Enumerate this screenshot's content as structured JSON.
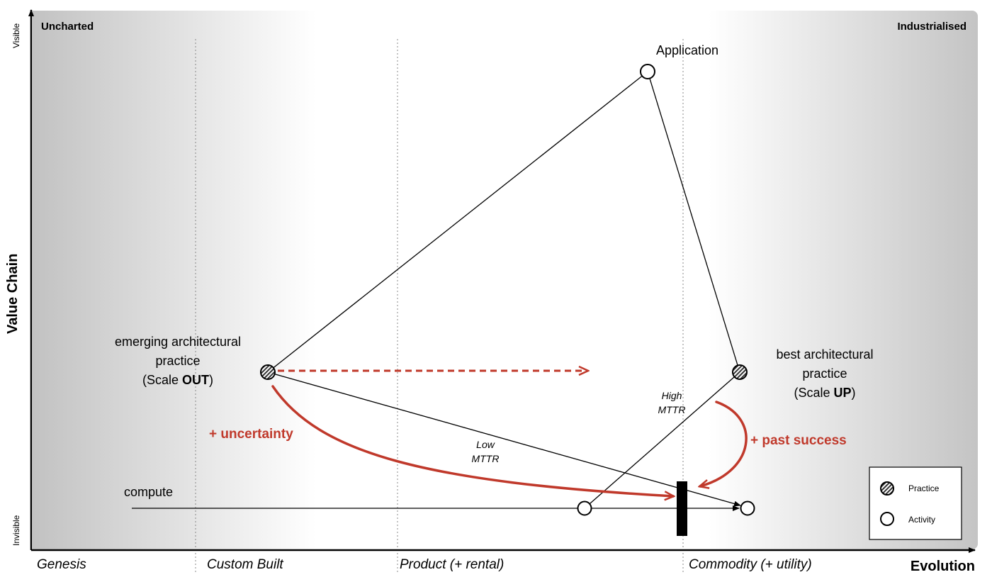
{
  "regions": {
    "uncharted": "Uncharted",
    "industrialised": "Industrialised"
  },
  "axes": {
    "y_title": "Value Chain",
    "y_top": "Visible",
    "y_bottom": "Invisible",
    "x_title": "Evolution"
  },
  "stages": [
    "Genesis",
    "Custom Built",
    "Product (+ rental)",
    "Commodity (+ utility)"
  ],
  "nodes": {
    "application": "Application",
    "compute": "compute",
    "emerging": {
      "line1": "emerging architectural",
      "line2": "practice",
      "line3_prefix": "(Scale ",
      "line3_bold": "OUT",
      "line3_suffix": ")"
    },
    "best": {
      "line1": "best architectural",
      "line2": "practice",
      "line3_prefix": "(Scale ",
      "line3_bold": "UP",
      "line3_suffix": ")"
    }
  },
  "annotations": {
    "uncertainty": "+ uncertainty",
    "past_success": "+ past success",
    "low_mttr": [
      "Low",
      "MTTR"
    ],
    "high_mttr": [
      "High",
      "MTTR"
    ]
  },
  "legend": {
    "practice": "Practice",
    "activity": "Activity"
  },
  "colors": {
    "accent_red": "#c0392b",
    "gradient_dark": "#c4c4c4",
    "line": "#000000"
  }
}
